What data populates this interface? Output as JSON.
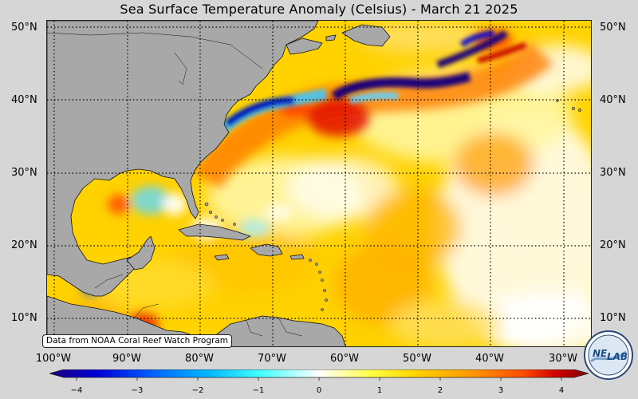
{
  "title": "Sea Surface Temperature Anomaly (Celsius) - March 21 2025",
  "map": {
    "latitude_labels": [
      "50°N",
      "40°N",
      "30°N",
      "20°N",
      "10°N"
    ],
    "longitude_labels": [
      "100°W",
      "90°W",
      "80°W",
      "70°W",
      "60°W",
      "50°W",
      "40°W",
      "30°W"
    ],
    "land_color": "#a8a8a8",
    "ocean_base_color": "#ffd200",
    "grid_style": "dotted"
  },
  "source_note": "Data from NOAA Coral Reef Watch Program",
  "colorbar": {
    "ticks": [
      "−4",
      "−3",
      "−2",
      "−1",
      "0",
      "1",
      "2",
      "3",
      "4"
    ],
    "min": -4,
    "max": 4,
    "colors": [
      "#1a007a",
      "#0000d8",
      "#0060ff",
      "#00b4ff",
      "#40ffff",
      "#ffffff",
      "#ffff40",
      "#ffd200",
      "#ff9a00",
      "#ff4a00",
      "#d00000",
      "#800000"
    ]
  },
  "logo": {
    "text_left": "NE",
    "text_right": "LAB"
  }
}
